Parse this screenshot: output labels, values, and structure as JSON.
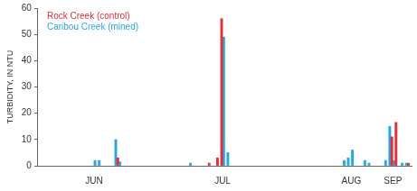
{
  "chart_data": {
    "type": "bar",
    "y_label": "TURBIDITY, IN NTU",
    "categories": [
      null,
      null,
      null,
      null,
      null,
      null,
      null,
      null,
      null,
      null,
      null,
      null,
      null,
      "JUN",
      null,
      null,
      null,
      null,
      null,
      null,
      null,
      null,
      null,
      null,
      null,
      null,
      null,
      null,
      null,
      null,
      null,
      null,
      null,
      null,
      null,
      null,
      null,
      null,
      null,
      null,
      null,
      null,
      null,
      null,
      "JUL",
      null,
      null,
      null,
      null,
      null,
      null,
      null,
      null,
      null,
      null,
      null,
      null,
      null,
      null,
      null,
      null,
      null,
      null,
      null,
      null,
      null,
      null,
      null,
      null,
      null,
      null,
      null,
      null,
      null,
      null,
      "AUG",
      null,
      null,
      null,
      null,
      null,
      null,
      null,
      null,
      null,
      "SEP",
      null,
      null,
      null,
      null
    ],
    "series": [
      {
        "name": "Rock Creek (control)",
        "color": "#e0303a",
        "values": [
          null,
          null,
          null,
          null,
          null,
          null,
          null,
          null,
          null,
          null,
          null,
          null,
          null,
          null,
          null,
          null,
          null,
          null,
          null,
          3,
          null,
          null,
          null,
          null,
          null,
          null,
          null,
          null,
          null,
          null,
          null,
          null,
          null,
          null,
          null,
          null,
          null,
          null,
          null,
          null,
          null,
          1,
          null,
          3,
          56,
          null,
          null,
          null,
          null,
          null,
          null,
          null,
          null,
          null,
          null,
          null,
          null,
          null,
          null,
          null,
          null,
          null,
          null,
          null,
          null,
          null,
          null,
          null,
          null,
          null,
          null,
          null,
          null,
          null,
          null,
          null,
          null,
          null,
          null,
          null,
          null,
          null,
          null,
          null,
          null,
          11,
          16.5,
          null,
          null,
          1
        ]
      },
      {
        "name": "Caribou Creek (mined)",
        "color": "#29a8e0",
        "values": [
          null,
          null,
          null,
          null,
          null,
          null,
          null,
          null,
          null,
          null,
          null,
          null,
          null,
          2,
          2,
          null,
          null,
          null,
          10,
          1.5,
          null,
          null,
          null,
          null,
          null,
          null,
          null,
          null,
          null,
          null,
          null,
          null,
          null,
          null,
          null,
          null,
          1,
          null,
          null,
          null,
          null,
          null,
          null,
          null,
          49,
          5,
          null,
          null,
          null,
          null,
          null,
          null,
          null,
          null,
          null,
          null,
          null,
          null,
          null,
          null,
          null,
          null,
          null,
          null,
          null,
          null,
          null,
          null,
          null,
          null,
          null,
          null,
          null,
          2,
          3,
          6,
          null,
          null,
          2,
          1,
          null,
          null,
          null,
          2,
          15,
          2,
          null,
          1,
          1,
          null
        ]
      }
    ],
    "ylim": [
      0,
      60
    ],
    "yticks": [
      0,
      10,
      20,
      30,
      40,
      50,
      60
    ],
    "grid": false,
    "legend": "upper left"
  }
}
